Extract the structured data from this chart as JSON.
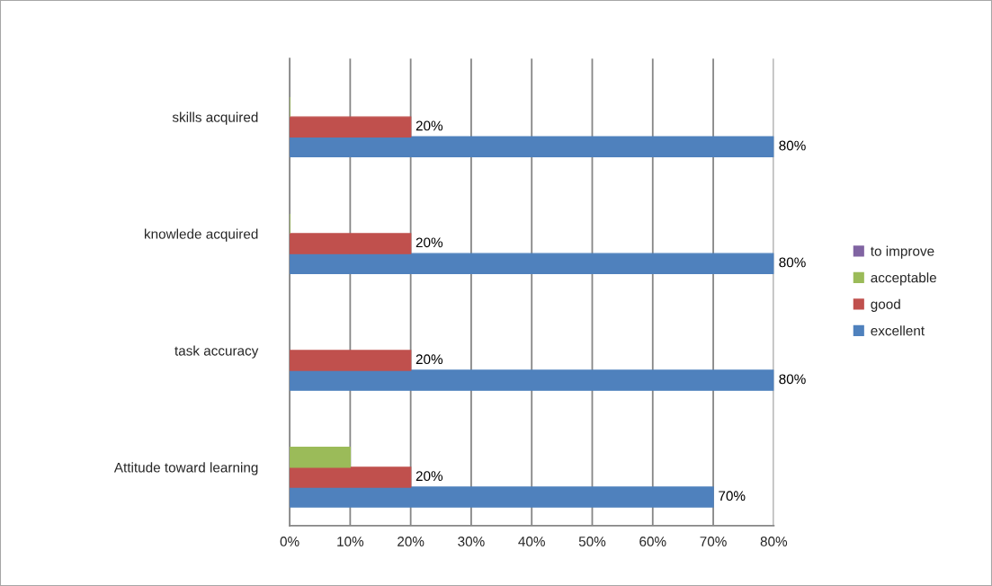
{
  "chart_data": {
    "type": "bar",
    "orientation": "horizontal",
    "categories": [
      "skills acquired",
      "knowlede acquired",
      "task accuracy",
      "Attitude toward learning"
    ],
    "series": [
      {
        "name": "excellent",
        "color": "#4f81bd",
        "values": [
          80,
          80,
          80,
          70
        ],
        "value_labels": [
          "80%",
          "80%",
          "80%",
          "70%"
        ]
      },
      {
        "name": "good",
        "color": "#c0504d",
        "values": [
          20,
          20,
          20,
          20
        ],
        "value_labels": [
          "20%",
          "20%",
          "20%",
          "20%"
        ]
      },
      {
        "name": "acceptable",
        "color": "#9bbb59",
        "values": [
          0,
          0,
          null,
          10
        ]
      },
      {
        "name": "to improve",
        "color": "#8064a2",
        "values": [
          null,
          null,
          null,
          null
        ]
      }
    ],
    "xlim": [
      0,
      80
    ],
    "xticks": [
      {
        "value": 0,
        "label": "0%"
      },
      {
        "value": 10,
        "label": "10%"
      },
      {
        "value": 20,
        "label": "20%"
      },
      {
        "value": 30,
        "label": "30%"
      },
      {
        "value": 40,
        "label": "40%"
      },
      {
        "value": 50,
        "label": "50%"
      },
      {
        "value": 60,
        "label": "60%"
      },
      {
        "value": 70,
        "label": "70%"
      },
      {
        "value": 80,
        "label": "80%"
      }
    ],
    "grid": "x",
    "legend": "right"
  }
}
